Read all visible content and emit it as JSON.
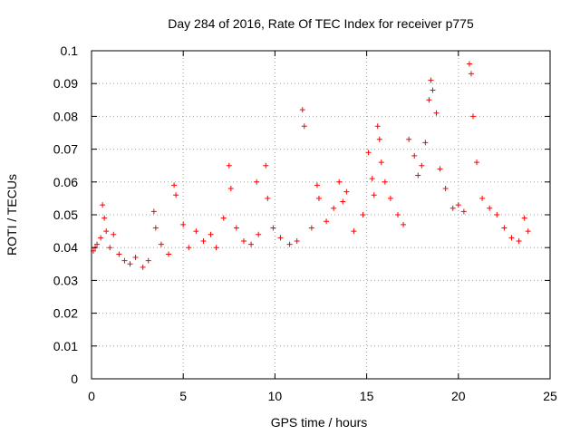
{
  "chart_data": {
    "type": "scatter",
    "title": "Day 284 of 2016, Rate Of TEC Index for receiver p775",
    "xlabel": "GPS time / hours",
    "ylabel": "ROTI / TECUs",
    "xlim": [
      0,
      25
    ],
    "ylim": [
      0,
      0.1
    ],
    "xticks": [
      "0",
      "5",
      "10",
      "15",
      "20",
      "25"
    ],
    "yticks": [
      "0",
      "0.01",
      "0.02",
      "0.03",
      "0.04",
      "0.05",
      "0.06",
      "0.07",
      "0.08",
      "0.09",
      "0.1"
    ],
    "grid": true,
    "marker": "+",
    "series": [
      {
        "name": "ROTI",
        "color": "#ff0000",
        "x": [
          0.1,
          0.2,
          0.3,
          0.5,
          0.6,
          0.7,
          0.8,
          1.0,
          1.2,
          1.5,
          1.8,
          2.1,
          2.4,
          2.8,
          3.1,
          3.4,
          3.5,
          3.8,
          4.2,
          4.5,
          4.6,
          5.0,
          5.3,
          5.7,
          6.1,
          6.5,
          6.8,
          7.2,
          7.5,
          7.6,
          7.9,
          8.3,
          8.7,
          9.0,
          9.1,
          9.5,
          9.6,
          9.9,
          10.3,
          10.8,
          11.2,
          11.5,
          11.6,
          12.0,
          12.3,
          12.4,
          12.8,
          13.2,
          13.5,
          13.7,
          13.9,
          14.3,
          14.8,
          15.1,
          15.3,
          15.4,
          15.6,
          15.7,
          15.8,
          16.0,
          16.3,
          16.7,
          17.0,
          17.3,
          17.6,
          17.8,
          18.0,
          18.2,
          18.4,
          18.5,
          18.6,
          18.8,
          19.0,
          19.3,
          19.7,
          20.0,
          20.3,
          20.6,
          20.7,
          20.8,
          21.0,
          21.3,
          21.7,
          22.1,
          22.5,
          22.9,
          23.3,
          23.6,
          23.8
        ],
        "y": [
          0.039,
          0.04,
          0.041,
          0.043,
          0.053,
          0.049,
          0.045,
          0.04,
          0.044,
          0.038,
          0.036,
          0.035,
          0.037,
          0.034,
          0.036,
          0.051,
          0.046,
          0.041,
          0.038,
          0.059,
          0.056,
          0.047,
          0.04,
          0.045,
          0.042,
          0.044,
          0.04,
          0.049,
          0.065,
          0.058,
          0.046,
          0.042,
          0.041,
          0.06,
          0.044,
          0.065,
          0.055,
          0.046,
          0.043,
          0.041,
          0.042,
          0.082,
          0.077,
          0.046,
          0.059,
          0.055,
          0.048,
          0.052,
          0.06,
          0.054,
          0.057,
          0.045,
          0.05,
          0.069,
          0.061,
          0.056,
          0.077,
          0.073,
          0.066,
          0.06,
          0.055,
          0.05,
          0.047,
          0.073,
          0.068,
          0.062,
          0.065,
          0.072,
          0.085,
          0.091,
          0.088,
          0.081,
          0.064,
          0.058,
          0.052,
          0.053,
          0.051,
          0.096,
          0.093,
          0.08,
          0.066,
          0.055,
          0.052,
          0.05,
          0.046,
          0.043,
          0.042,
          0.049,
          0.045
        ]
      }
    ]
  }
}
